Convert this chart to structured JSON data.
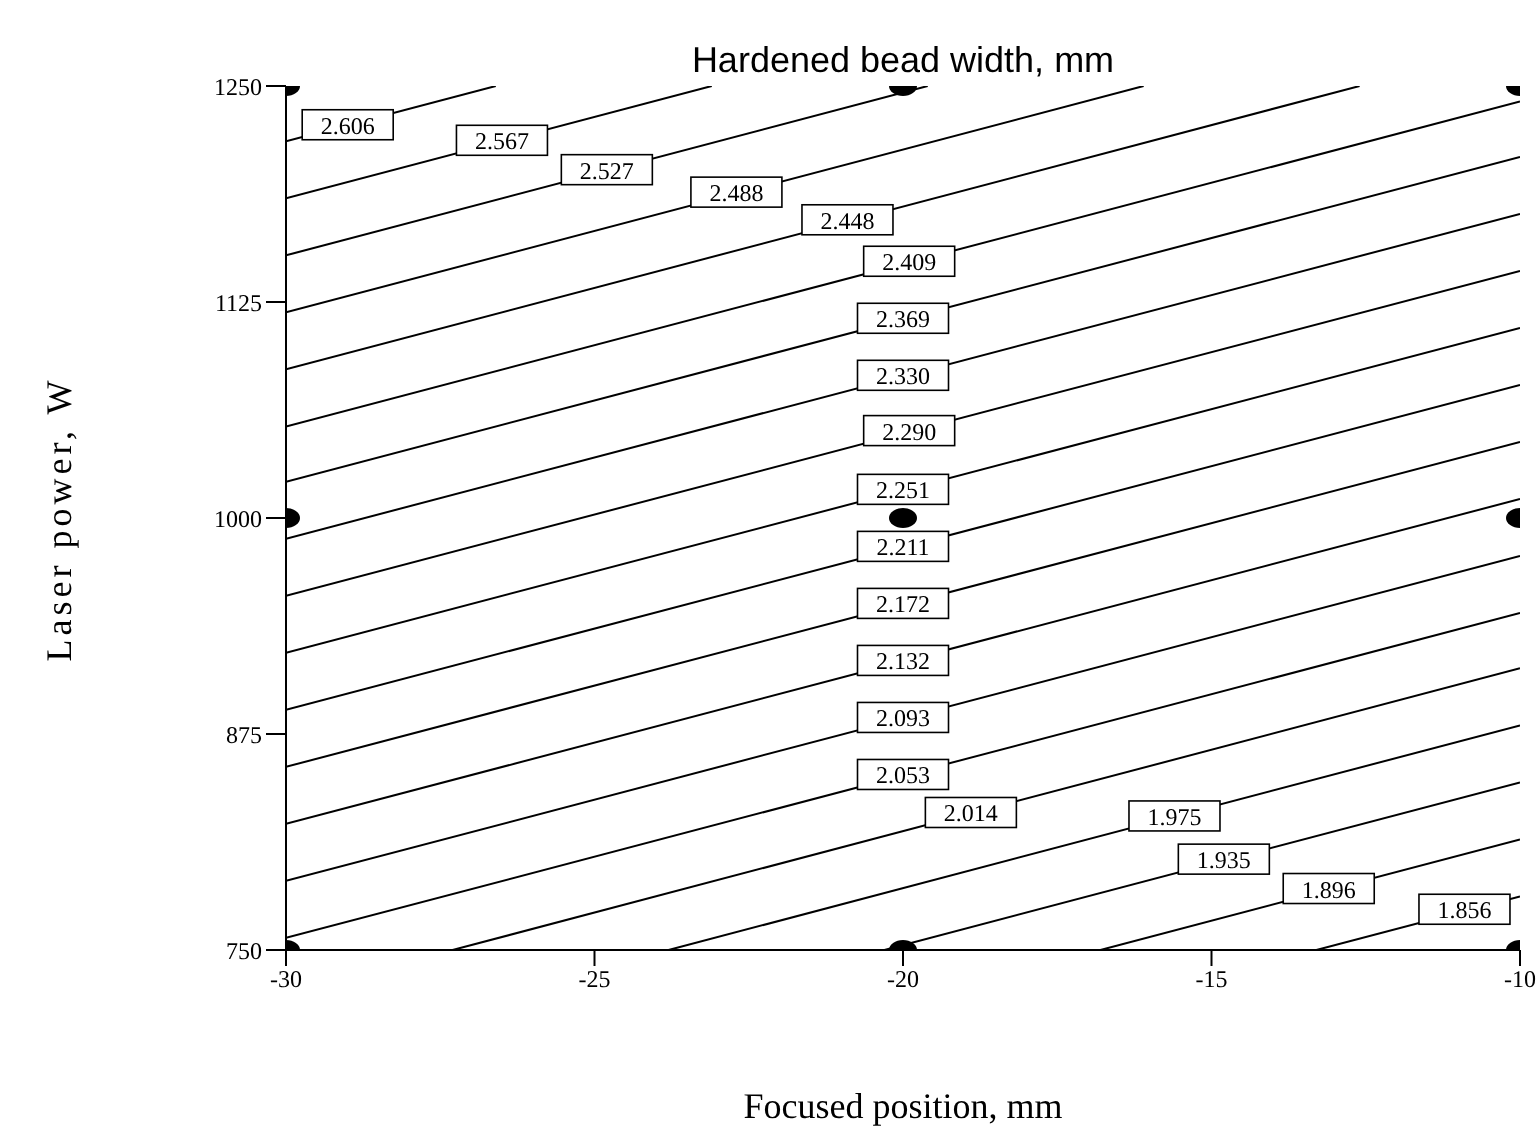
{
  "chart_data": {
    "type": "line",
    "title": "Hardened bead width, mm",
    "xlabel": "Focused position, mm",
    "ylabel": "Laser power, W",
    "xlim": [
      -30,
      -10
    ],
    "xticks": [
      -30,
      -25,
      -20,
      -15,
      -10
    ],
    "ylim": [
      750,
      1250
    ],
    "yticks": [
      750,
      875,
      1000,
      1125,
      1250
    ],
    "grid": false,
    "legend": false,
    "marker": "none",
    "line_style": "solid",
    "series": [
      {
        "color": "#000000",
        "x": [
          -30,
          -26.6
        ],
        "values": [
          1218,
          1250
        ]
      },
      {
        "color": "#000000",
        "x": [
          -30,
          -23.1
        ],
        "values": [
          1185,
          1250
        ]
      },
      {
        "color": "#000000",
        "x": [
          -30,
          -19.6
        ],
        "values": [
          1152,
          1250
        ]
      },
      {
        "color": "#000000",
        "x": [
          -30,
          -16.1
        ],
        "values": [
          1119,
          1250
        ]
      },
      {
        "color": "#000000",
        "x": [
          -30,
          -12.6
        ],
        "values": [
          1086,
          1250
        ]
      },
      {
        "color": "#000000",
        "x": [
          -30,
          -10
        ],
        "values": [
          1053,
          1241
        ]
      },
      {
        "color": "#000000",
        "x": [
          -30,
          -10
        ],
        "values": [
          1021,
          1209
        ]
      },
      {
        "color": "#000000",
        "x": [
          -30,
          -10
        ],
        "values": [
          988,
          1176
        ]
      },
      {
        "color": "#000000",
        "x": [
          -30,
          -10
        ],
        "values": [
          955,
          1143
        ]
      },
      {
        "color": "#000000",
        "x": [
          -30,
          -10
        ],
        "values": [
          922,
          1110
        ]
      },
      {
        "color": "#000000",
        "x": [
          -30,
          -10
        ],
        "values": [
          889,
          1077
        ]
      },
      {
        "color": "#000000",
        "x": [
          -30,
          -10
        ],
        "values": [
          856,
          1044
        ]
      },
      {
        "color": "#000000",
        "x": [
          -30,
          -10
        ],
        "values": [
          823,
          1011
        ]
      },
      {
        "color": "#000000",
        "x": [
          -30,
          -10
        ],
        "values": [
          790,
          978
        ]
      },
      {
        "color": "#000000",
        "x": [
          -30,
          -10
        ],
        "values": [
          757,
          945
        ]
      },
      {
        "color": "#000000",
        "x": [
          -27.3,
          -10
        ],
        "values": [
          750,
          913
        ]
      },
      {
        "color": "#000000",
        "x": [
          -23.8,
          -10
        ],
        "values": [
          750,
          880
        ]
      },
      {
        "color": "#000000",
        "x": [
          -20.3,
          -10
        ],
        "values": [
          750,
          847
        ]
      },
      {
        "color": "#000000",
        "x": [
          -16.8,
          -10
        ],
        "values": [
          750,
          814
        ]
      },
      {
        "color": "#000000",
        "x": [
          -13.3,
          -10
        ],
        "values": [
          750,
          781
        ]
      },
      {
        "type": "scatter",
        "color": "#000000",
        "marker": "circle",
        "x": [
          -30,
          -20,
          -10,
          -30,
          -20,
          -10,
          -30,
          -20,
          -10
        ],
        "values": [
          1250,
          1250,
          1250,
          1000,
          1000,
          1000,
          750,
          750,
          750
        ]
      }
    ],
    "annotations": [
      {
        "text": "2.606",
        "x": -29,
        "y": 1227
      },
      {
        "text": "2.567",
        "x": -26.5,
        "y": 1218
      },
      {
        "text": "2.527",
        "x": -24.8,
        "y": 1201
      },
      {
        "text": "2.488",
        "x": -22.7,
        "y": 1188
      },
      {
        "text": "2.448",
        "x": -20.9,
        "y": 1172
      },
      {
        "text": "2.409",
        "x": -19.9,
        "y": 1148
      },
      {
        "text": "2.369",
        "x": -20,
        "y": 1115
      },
      {
        "text": "2.330",
        "x": -20,
        "y": 1082
      },
      {
        "text": "2.290",
        "x": -19.9,
        "y": 1050
      },
      {
        "text": "2.251",
        "x": -20,
        "y": 1016
      },
      {
        "text": "2.211",
        "x": -20,
        "y": 983
      },
      {
        "text": "2.172",
        "x": -20,
        "y": 950
      },
      {
        "text": "2.132",
        "x": -20,
        "y": 917
      },
      {
        "text": "2.093",
        "x": -20,
        "y": 884
      },
      {
        "text": "2.053",
        "x": -20,
        "y": 851
      },
      {
        "text": "2.014",
        "x": -18.9,
        "y": 829
      },
      {
        "text": "1.975",
        "x": -15.6,
        "y": 827
      },
      {
        "text": "1.935",
        "x": -14.8,
        "y": 802
      },
      {
        "text": "1.896",
        "x": -13.1,
        "y": 785
      },
      {
        "text": "1.856",
        "x": -10.9,
        "y": 773
      }
    ]
  }
}
